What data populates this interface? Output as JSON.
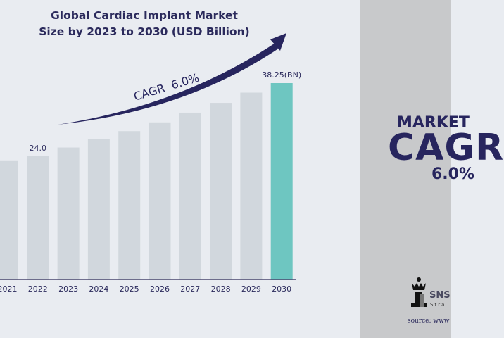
{
  "chart_data": {
    "type": "bar",
    "title": "Global Cardiac Implant Market Size by 2023 to 2030 (USD Billion)",
    "title_lines": [
      "Global Cardiac Implant Market",
      "Size by 2023 to 2030 (USD Billion)"
    ],
    "categories": [
      "2021",
      "2022",
      "2023",
      "2024",
      "2025",
      "2026",
      "2027",
      "2028",
      "2029",
      "2030"
    ],
    "values": [
      23.2,
      24.0,
      25.7,
      27.3,
      28.9,
      30.6,
      32.5,
      34.4,
      36.4,
      38.25
    ],
    "data_labels": {
      "1": "24.0",
      "9": "38.25(BN)"
    },
    "annotation": "CAGR  6.0%",
    "ylim": [
      0,
      40
    ],
    "grid": false,
    "colors": {
      "bar": "#d1d7dd",
      "highlight": "#6ec6c1",
      "text": "#2b2a5c",
      "arrow": "#27255e",
      "background": "#e9ecf1"
    }
  },
  "panel": {
    "line1": "MARKET",
    "line2": "CAGR",
    "line3": "6.0%",
    "logo_text": "SNS",
    "logo_sub": "Stra",
    "source": "source: www",
    "background": "#c8c9cb"
  }
}
